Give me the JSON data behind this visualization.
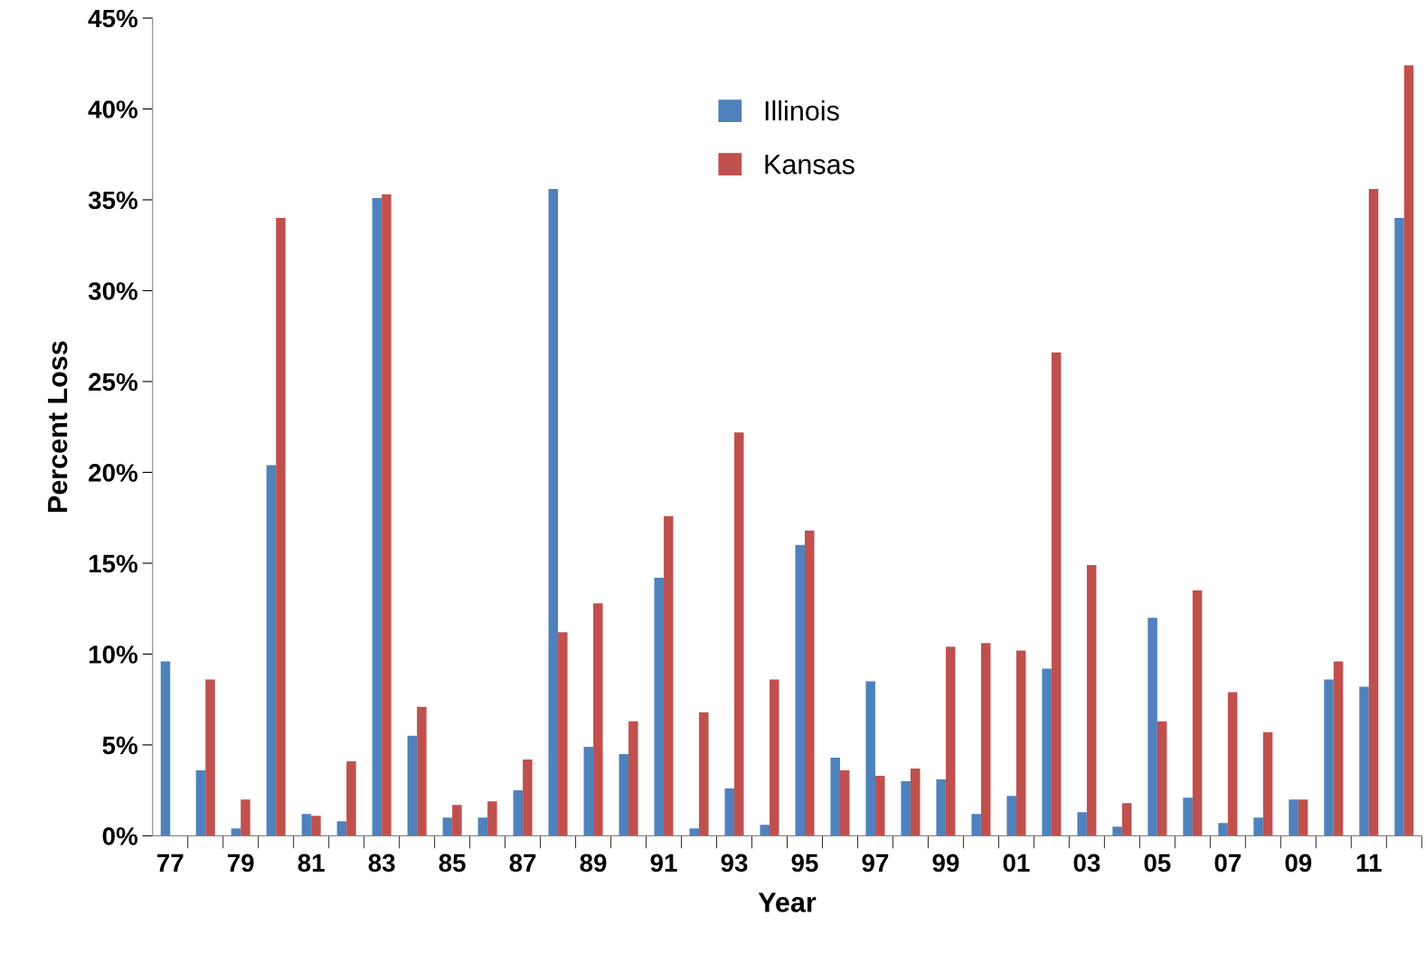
{
  "chart_data": {
    "type": "bar",
    "xlabel": "Year",
    "ylabel": "Percent Loss",
    "categories": [
      "77",
      null,
      "79",
      null,
      "81",
      null,
      "83",
      null,
      "85",
      null,
      "87",
      null,
      "89",
      null,
      "91",
      null,
      "93",
      null,
      "95",
      null,
      "97",
      null,
      "99",
      null,
      "01",
      null,
      "03",
      null,
      "05",
      null,
      "07",
      null,
      "09",
      null,
      "11",
      null
    ],
    "series": [
      {
        "name": "Illinois",
        "color": "#4f81bd",
        "values": [
          9.6,
          3.6,
          0.4,
          20.4,
          1.2,
          0.8,
          35.1,
          5.5,
          1.0,
          1.0,
          2.5,
          35.6,
          4.9,
          4.5,
          14.2,
          0.4,
          2.6,
          0.6,
          16.0,
          4.3,
          8.5,
          3.0,
          3.1,
          1.2,
          2.2,
          9.2,
          1.3,
          0.5,
          12.0,
          2.1,
          0.7,
          1.0,
          2.0,
          8.6,
          8.2,
          34.0
        ]
      },
      {
        "name": "Kansas",
        "color": "#c0504d",
        "values": [
          0,
          8.6,
          2.0,
          34.0,
          1.1,
          4.1,
          35.3,
          7.1,
          1.7,
          1.9,
          4.2,
          11.2,
          12.8,
          6.3,
          17.6,
          6.8,
          22.2,
          8.6,
          16.8,
          3.6,
          3.3,
          3.7,
          10.4,
          10.6,
          10.2,
          26.6,
          14.9,
          1.8,
          6.3,
          13.5,
          7.9,
          5.7,
          2.0,
          9.6,
          35.6,
          42.4
        ]
      }
    ],
    "ylim": [
      0,
      45
    ],
    "yticks": [
      {
        "value": 0,
        "label": "0%"
      },
      {
        "value": 5,
        "label": "5%"
      },
      {
        "value": 10,
        "label": "10%"
      },
      {
        "value": 15,
        "label": "15%"
      },
      {
        "value": 20,
        "label": "20%"
      },
      {
        "value": 25,
        "label": "25%"
      },
      {
        "value": 30,
        "label": "30%"
      },
      {
        "value": 35,
        "label": "35%"
      },
      {
        "value": 40,
        "label": "40%"
      },
      {
        "value": 45,
        "label": "45%"
      }
    ],
    "grid": false,
    "legend": "top"
  }
}
